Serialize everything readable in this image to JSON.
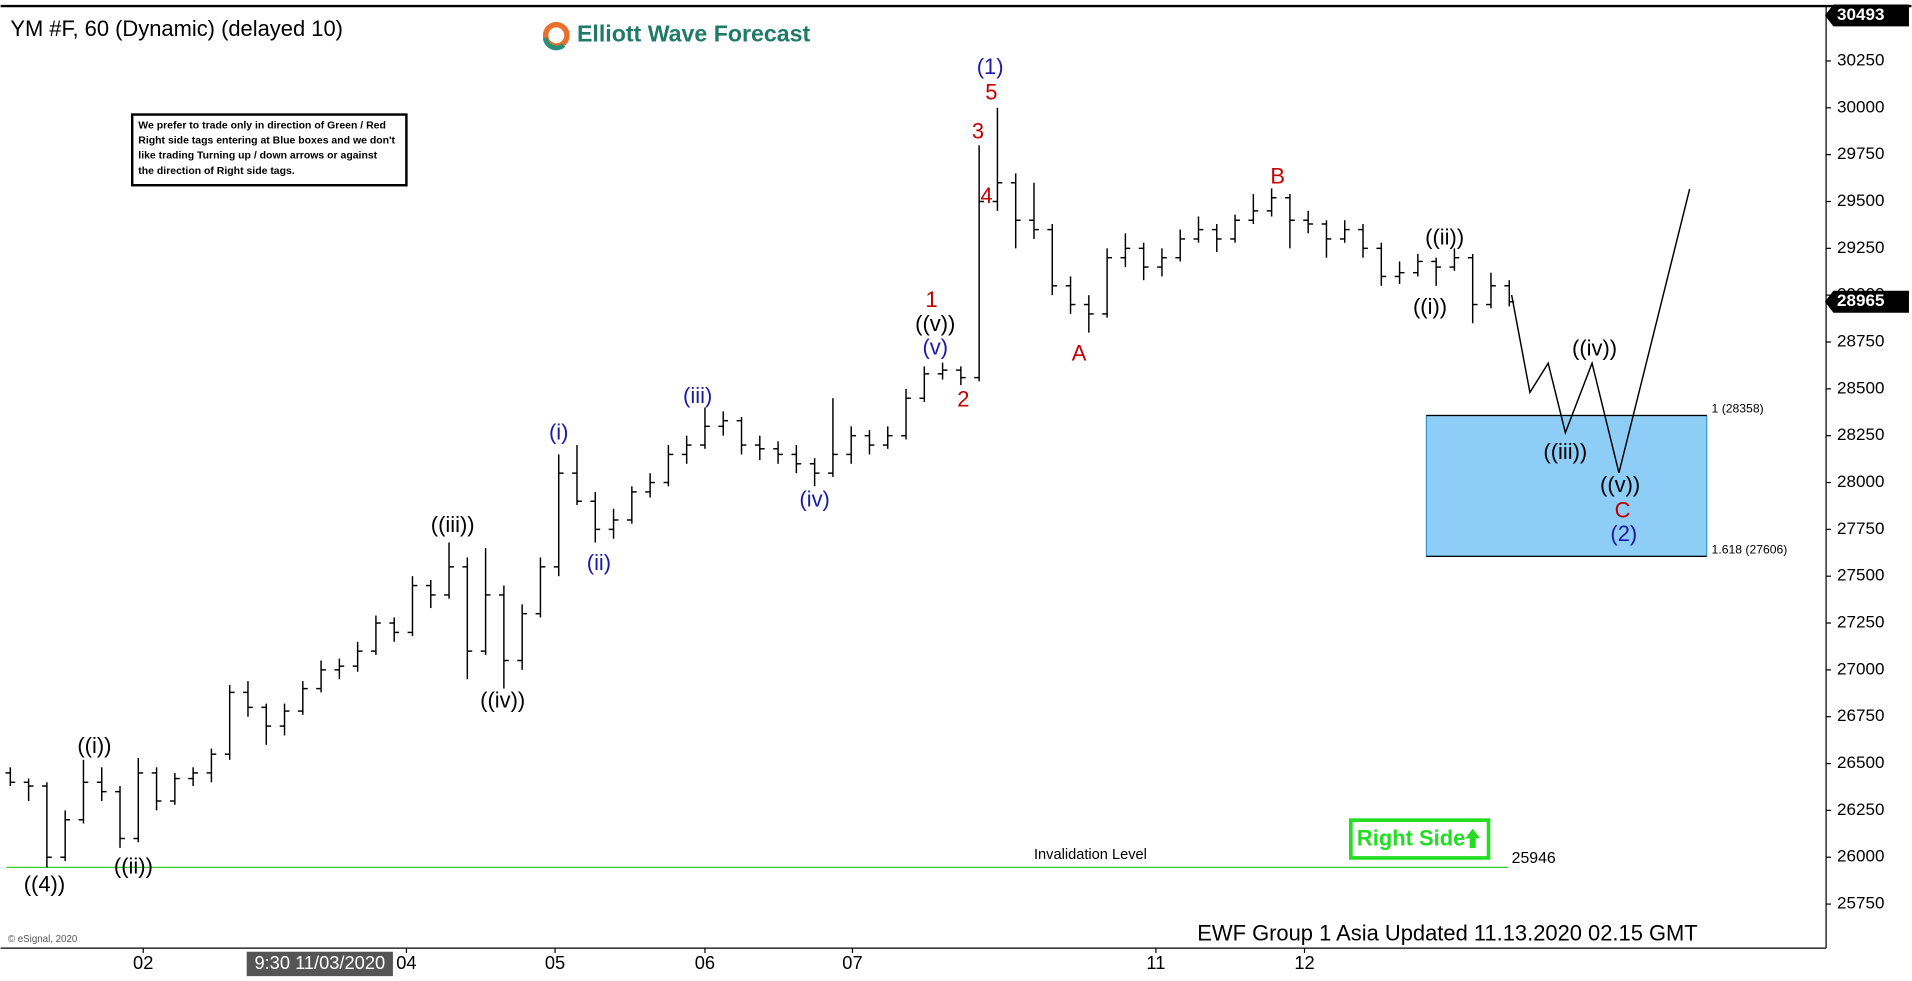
{
  "chart_data": {
    "type": "ohlc",
    "title": "YM #F, 60 (Dynamic) (delayed 10)",
    "brand": "Elliott Wave Forecast",
    "notice": [
      "We prefer to trade only in direction of Green / Red",
      "Right side tags entering at Blue boxes and we don't",
      "like trading Turning up / down arrows or against",
      "the direction of Right side tags."
    ],
    "footer": "EWF Group 1 Asia Updated 11.13.2020 02.15 GMT",
    "copyright": "© eSignal, 2020",
    "right_side": "Right Side",
    "color": "#000000",
    "bars": [
      [
        26450,
        26480,
        26380,
        26400
      ],
      [
        26400,
        26420,
        26300,
        26380
      ],
      [
        26380,
        26400,
        25946,
        26000
      ],
      [
        26000,
        26250,
        25980,
        26200
      ],
      [
        26200,
        26520,
        26180,
        26400
      ],
      [
        26400,
        26480,
        26300,
        26350
      ],
      [
        26350,
        26380,
        26050,
        26100
      ],
      [
        26100,
        26530,
        26080,
        26450
      ],
      [
        26450,
        26480,
        26250,
        26300
      ],
      [
        26300,
        26450,
        26280,
        26420
      ],
      [
        26420,
        26480,
        26380,
        26450
      ],
      [
        26450,
        26580,
        26400,
        26550
      ],
      [
        26550,
        26920,
        26520,
        26880
      ],
      [
        26880,
        26940,
        26750,
        26800
      ],
      [
        26800,
        26820,
        26600,
        26700
      ],
      [
        26700,
        26820,
        26650,
        26780
      ],
      [
        26780,
        26940,
        26760,
        26900
      ],
      [
        26900,
        27050,
        26880,
        27000
      ],
      [
        27000,
        27060,
        26950,
        27020
      ],
      [
        27020,
        27150,
        26990,
        27100
      ],
      [
        27100,
        27290,
        27080,
        27250
      ],
      [
        27250,
        27280,
        27150,
        27200
      ],
      [
        27200,
        27500,
        27180,
        27450
      ],
      [
        27450,
        27480,
        27330,
        27400
      ],
      [
        27400,
        27680,
        27380,
        27550
      ],
      [
        27550,
        27600,
        26950,
        27100
      ],
      [
        27100,
        27650,
        27080,
        27400
      ],
      [
        27400,
        27450,
        26900,
        27050
      ],
      [
        27050,
        27350,
        27000,
        27300
      ],
      [
        27300,
        27600,
        27280,
        27550
      ],
      [
        27550,
        28150,
        27500,
        28050
      ],
      [
        28050,
        28200,
        27880,
        27900
      ],
      [
        27900,
        27950,
        27680,
        27750
      ],
      [
        27750,
        27860,
        27700,
        27800
      ],
      [
        27800,
        27980,
        27780,
        27950
      ],
      [
        27950,
        28050,
        27920,
        28000
      ],
      [
        28000,
        28200,
        27980,
        28150
      ],
      [
        28150,
        28250,
        28100,
        28200
      ],
      [
        28200,
        28400,
        28180,
        28300
      ],
      [
        28300,
        28380,
        28250,
        28330
      ],
      [
        28330,
        28350,
        28150,
        28200
      ],
      [
        28200,
        28250,
        28120,
        28180
      ],
      [
        28180,
        28220,
        28100,
        28150
      ],
      [
        28150,
        28200,
        28050,
        28100
      ],
      [
        28100,
        28130,
        27980,
        28050
      ],
      [
        28050,
        28450,
        28030,
        28150
      ],
      [
        28150,
        28300,
        28100,
        28250
      ],
      [
        28250,
        28280,
        28150,
        28200
      ],
      [
        28200,
        28300,
        28180,
        28250
      ],
      [
        28250,
        28500,
        28230,
        28450
      ],
      [
        28450,
        28620,
        28430,
        28580
      ],
      [
        28580,
        28640,
        28550,
        28600
      ],
      [
        28600,
        28620,
        28520,
        28560
      ],
      [
        28560,
        29800,
        28540,
        29500
      ],
      [
        29500,
        30000,
        29450,
        29600
      ],
      [
        29600,
        29650,
        29250,
        29400
      ],
      [
        29400,
        29600,
        29300,
        29350
      ],
      [
        29350,
        29380,
        29000,
        29050
      ],
      [
        29050,
        29100,
        28900,
        28950
      ],
      [
        28950,
        29000,
        28800,
        28900
      ],
      [
        28900,
        29250,
        28880,
        29200
      ],
      [
        29200,
        29330,
        29150,
        29250
      ],
      [
        29250,
        29280,
        29080,
        29150
      ],
      [
        29150,
        29250,
        29100,
        29200
      ],
      [
        29200,
        29350,
        29180,
        29300
      ],
      [
        29300,
        29420,
        29280,
        29350
      ],
      [
        29350,
        29380,
        29230,
        29300
      ],
      [
        29300,
        29430,
        29280,
        29400
      ],
      [
        29400,
        29540,
        29380,
        29450
      ],
      [
        29450,
        29570,
        29420,
        29520
      ],
      [
        29520,
        29540,
        29250,
        29400
      ],
      [
        29400,
        29450,
        29330,
        29380
      ],
      [
        29380,
        29400,
        29200,
        29300
      ],
      [
        29300,
        29400,
        29280,
        29350
      ],
      [
        29350,
        29380,
        29200,
        29250
      ],
      [
        29250,
        29280,
        29050,
        29100
      ],
      [
        29100,
        29180,
        29060,
        29120
      ],
      [
        29120,
        29220,
        29100,
        29180
      ],
      [
        29180,
        29200,
        29050,
        29150
      ],
      [
        29150,
        29250,
        29130,
        29200
      ],
      [
        29200,
        29220,
        28850,
        28950
      ],
      [
        28950,
        29120,
        28930,
        29050
      ],
      [
        29050,
        29080,
        28940,
        28965
      ]
    ],
    "xlim": [
      -0.533,
      99.267
    ],
    "xticks": [
      {
        "value": 7.27,
        "label": "02"
      },
      {
        "value": 21.67,
        "label": "04"
      },
      {
        "value": 29.8,
        "label": "05"
      },
      {
        "value": 38,
        "label": "06"
      },
      {
        "value": 46.07,
        "label": "07"
      },
      {
        "value": 62.67,
        "label": "11"
      },
      {
        "value": 70.8,
        "label": "12"
      }
    ],
    "cursor": {
      "value": 16.93,
      "label": "9:30 11/03/2020"
    },
    "ylim": [
      25515,
      30543
    ],
    "yticks": [
      25750,
      26000,
      26250,
      26500,
      26750,
      27000,
      27250,
      27500,
      27750,
      28000,
      28250,
      28500,
      28750,
      29000,
      29250,
      29500,
      29750,
      30000,
      30250
    ],
    "price_tag_top": 30493,
    "projection": {
      "color": "#000000",
      "x": [
        82.13,
        83.13,
        84.13,
        85.07,
        86.53,
        88,
        91.87
      ],
      "y": [
        29001,
        28481,
        28637,
        28266,
        28637,
        28052,
        29567
      ]
    },
    "zone": {
      "top": 28358,
      "bottom": 27606,
      "top_label": "1 (28358)",
      "bottom_label": "1.618 (27606)",
      "color": "#8ecdf5"
    },
    "invalidation": {
      "label": "Invalidation Level",
      "value": 25946,
      "color": "#33cc33"
    },
    "annotations": [
      {
        "text": "((4))",
        "color": "#000000"
      },
      {
        "text": "((i))",
        "color": "#000000"
      },
      {
        "text": "((ii))",
        "color": "#000000"
      },
      {
        "text": "((iii))",
        "color": "#000000"
      },
      {
        "text": "((iv))",
        "color": "#000000"
      },
      {
        "text": "(i)",
        "color": "#1a1aa6"
      },
      {
        "text": "(ii)",
        "color": "#1a1aa6"
      },
      {
        "text": "(iii)",
        "color": "#1a1aa6"
      },
      {
        "text": "(iv)",
        "color": "#1a1aa6"
      },
      {
        "text": "(v)",
        "color": "#1a1aa6"
      },
      {
        "text": "((v))",
        "color": "#000000"
      },
      {
        "text": "1",
        "color": "#c00000"
      },
      {
        "text": "2",
        "color": "#c00000"
      },
      {
        "text": "3",
        "color": "#c00000"
      },
      {
        "text": "4",
        "color": "#c00000"
      },
      {
        "text": "5",
        "color": "#c00000"
      },
      {
        "text": "(1)",
        "color": "#1a1aa6"
      },
      {
        "text": "A",
        "color": "#c00000"
      },
      {
        "text": "B",
        "color": "#c00000"
      },
      {
        "text": "((i))",
        "color": "#000000"
      },
      {
        "text": "((ii))",
        "color": "#000000"
      },
      {
        "text": "((iii))",
        "color": "#000000"
      },
      {
        "text": "((iv))",
        "color": "#000000"
      },
      {
        "text": "((v))",
        "color": "#000000"
      },
      {
        "text": "C",
        "color": "#c00000"
      },
      {
        "text": "(2)",
        "color": "#1a1aa6"
      }
    ]
  }
}
